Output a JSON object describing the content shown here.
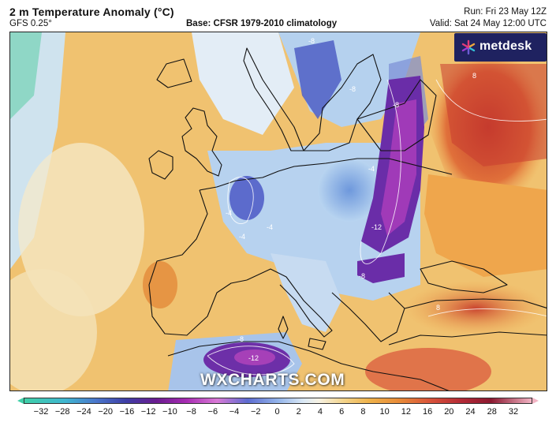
{
  "header": {
    "title": "2 m Temperature Anomaly (°C)",
    "model": "GFS 0.25°",
    "base": "Base: CFSR 1979-2010 climatology",
    "run": "Run: Fri 23 May 12Z",
    "valid": "Valid: Sat 24 May 12:00 UTC"
  },
  "logo": {
    "brand": "metdesk"
  },
  "watermark": "WXCHARTS.COM",
  "map": {
    "region": "Europe",
    "contour_labels": [
      "-8",
      "-8",
      "-8",
      "-4",
      "-4",
      "-4",
      "-4",
      "-12",
      "-8",
      "8",
      "8",
      "-8",
      "-12"
    ]
  },
  "colorbar": {
    "ticks": [
      "−32",
      "−28",
      "−24",
      "−20",
      "−16",
      "−12",
      "−10",
      "−8",
      "−6",
      "−4",
      "−2",
      "0",
      "2",
      "4",
      "6",
      "8",
      "10",
      "12",
      "16",
      "20",
      "24",
      "28",
      "32"
    ]
  },
  "colors": {
    "ocean_warm": "#f2c46a",
    "cold_blue": "#8fb8e6",
    "deep_cold": "#7a2ea6",
    "warm_red": "#d9533a",
    "logo_bg": "#1f2260"
  }
}
